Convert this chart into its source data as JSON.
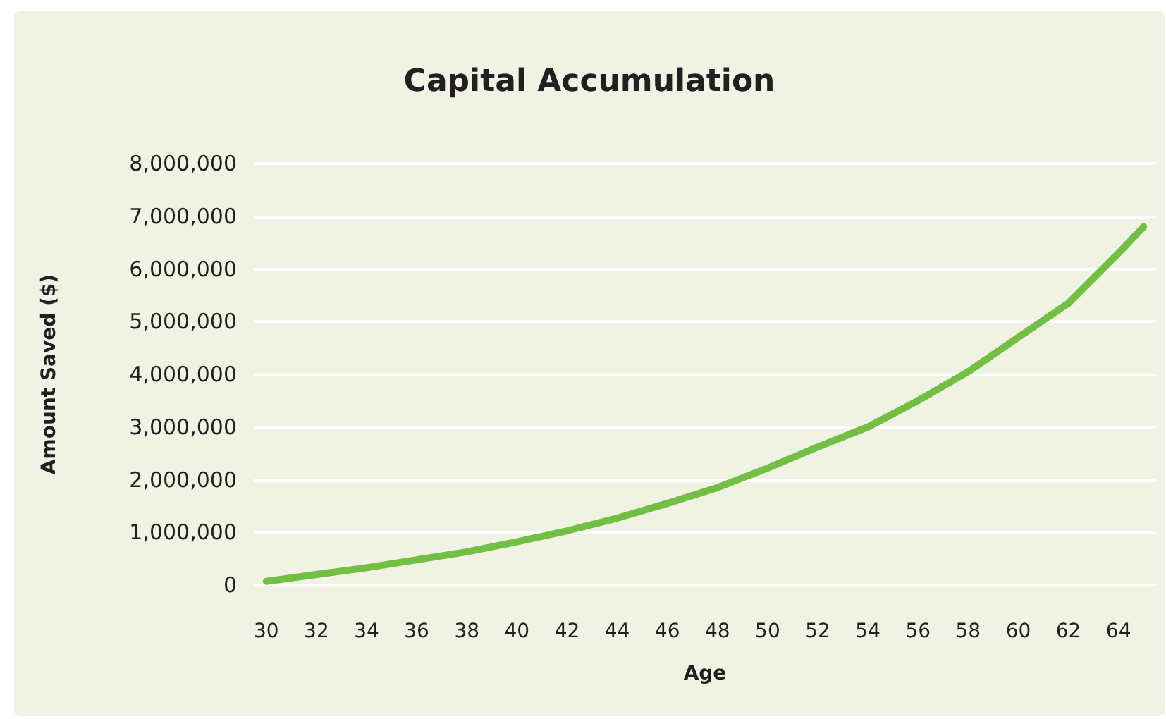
{
  "chart_data": {
    "type": "line",
    "title": "Capital Accumulation",
    "xlabel": "Age",
    "ylabel": "Amount Saved ($)",
    "x": [
      30,
      32,
      34,
      36,
      38,
      40,
      42,
      44,
      46,
      48,
      50,
      52,
      54,
      56,
      58,
      60,
      62,
      64,
      65
    ],
    "series": [
      {
        "color": "#72bf44",
        "values": [
          70000,
          200000,
          330000,
          480000,
          630000,
          820000,
          1030000,
          1270000,
          1550000,
          1850000,
          2220000,
          2620000,
          3000000,
          3500000,
          4050000,
          4700000,
          5350000,
          6300000,
          6800000
        ]
      }
    ],
    "xlim": [
      29.5,
      65.5
    ],
    "xticks": [
      30,
      32,
      34,
      36,
      38,
      40,
      42,
      44,
      46,
      48,
      50,
      52,
      54,
      56,
      58,
      60,
      62,
      64
    ],
    "ylim": [
      0,
      8000000
    ],
    "yticks": [
      {
        "value": 0,
        "label": "0"
      },
      {
        "value": 1000000,
        "label": "1,000,000"
      },
      {
        "value": 2000000,
        "label": "2,000,000"
      },
      {
        "value": 3000000,
        "label": "3,000,000"
      },
      {
        "value": 4000000,
        "label": "4,000,000"
      },
      {
        "value": 5000000,
        "label": "5,000,000"
      },
      {
        "value": 6000000,
        "label": "6,000,000"
      },
      {
        "value": 7000000,
        "label": "7,000,000"
      },
      {
        "value": 8000000,
        "label": "8,000,000"
      }
    ],
    "grid": "y",
    "marker": "none",
    "line_style": "solid"
  }
}
